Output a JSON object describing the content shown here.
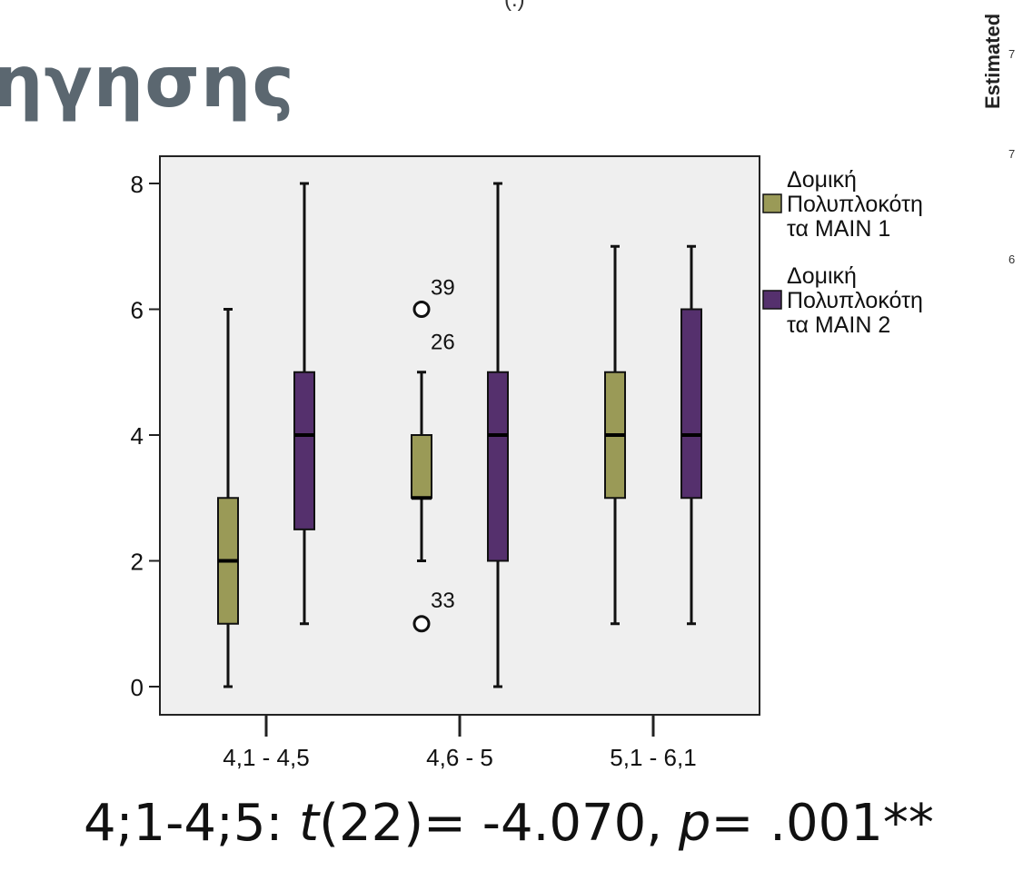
{
  "heading": "ηγησης",
  "top_fragment": "(.)",
  "side_panel": {
    "axis_label": "Estimated",
    "ticks": [
      "7",
      "7",
      "6"
    ]
  },
  "caption": {
    "prefix": "4;1-4;5: ",
    "t_symbol": "t",
    "t_rest": "(22)= -4.070, ",
    "p_symbol": "p",
    "p_rest": "= .001**"
  },
  "colors": {
    "series1": "#9a9a57",
    "series2": "#55306d",
    "plot_bg": "#efefef"
  },
  "chart_data": {
    "type": "boxplot",
    "categories": [
      "4,1 - 4,5",
      "4,6 - 5",
      "5,1 - 6,1"
    ],
    "ylim": [
      0,
      8
    ],
    "yticks": [
      0,
      2,
      4,
      6,
      8
    ],
    "grid": false,
    "legend": "right",
    "series": [
      {
        "name": "Δομική Πολυπλοκότητα MAIN 1",
        "legend_lines": [
          "Δομική",
          "Πολυπλοκότη",
          "τα MAIN 1"
        ],
        "boxes": [
          {
            "min": 0,
            "q1": 1,
            "median": 2,
            "q3": 3,
            "max": 6
          },
          {
            "min": 2,
            "q1": 3,
            "median": 3,
            "q3": 4,
            "max": 5
          },
          {
            "min": 1,
            "q1": 3,
            "median": 4,
            "q3": 5,
            "max": 7
          }
        ],
        "outliers": [
          {
            "category": "4,6 - 5",
            "value": 6,
            "labels": [
              "39",
              "26"
            ]
          },
          {
            "category": "4,6 - 5",
            "value": 1,
            "labels": [
              "33"
            ]
          }
        ]
      },
      {
        "name": "Δομική Πολυπλοκότητα MAIN 2",
        "legend_lines": [
          "Δομική",
          "Πολυπλοκότη",
          "τα MAIN 2"
        ],
        "boxes": [
          {
            "min": 1,
            "q1": 2.5,
            "median": 4,
            "q3": 5,
            "max": 8
          },
          {
            "min": 0,
            "q1": 2,
            "median": 4,
            "q3": 5,
            "max": 8
          },
          {
            "min": 1,
            "q1": 3,
            "median": 4,
            "q3": 6,
            "max": 7
          }
        ],
        "outliers": []
      }
    ]
  }
}
